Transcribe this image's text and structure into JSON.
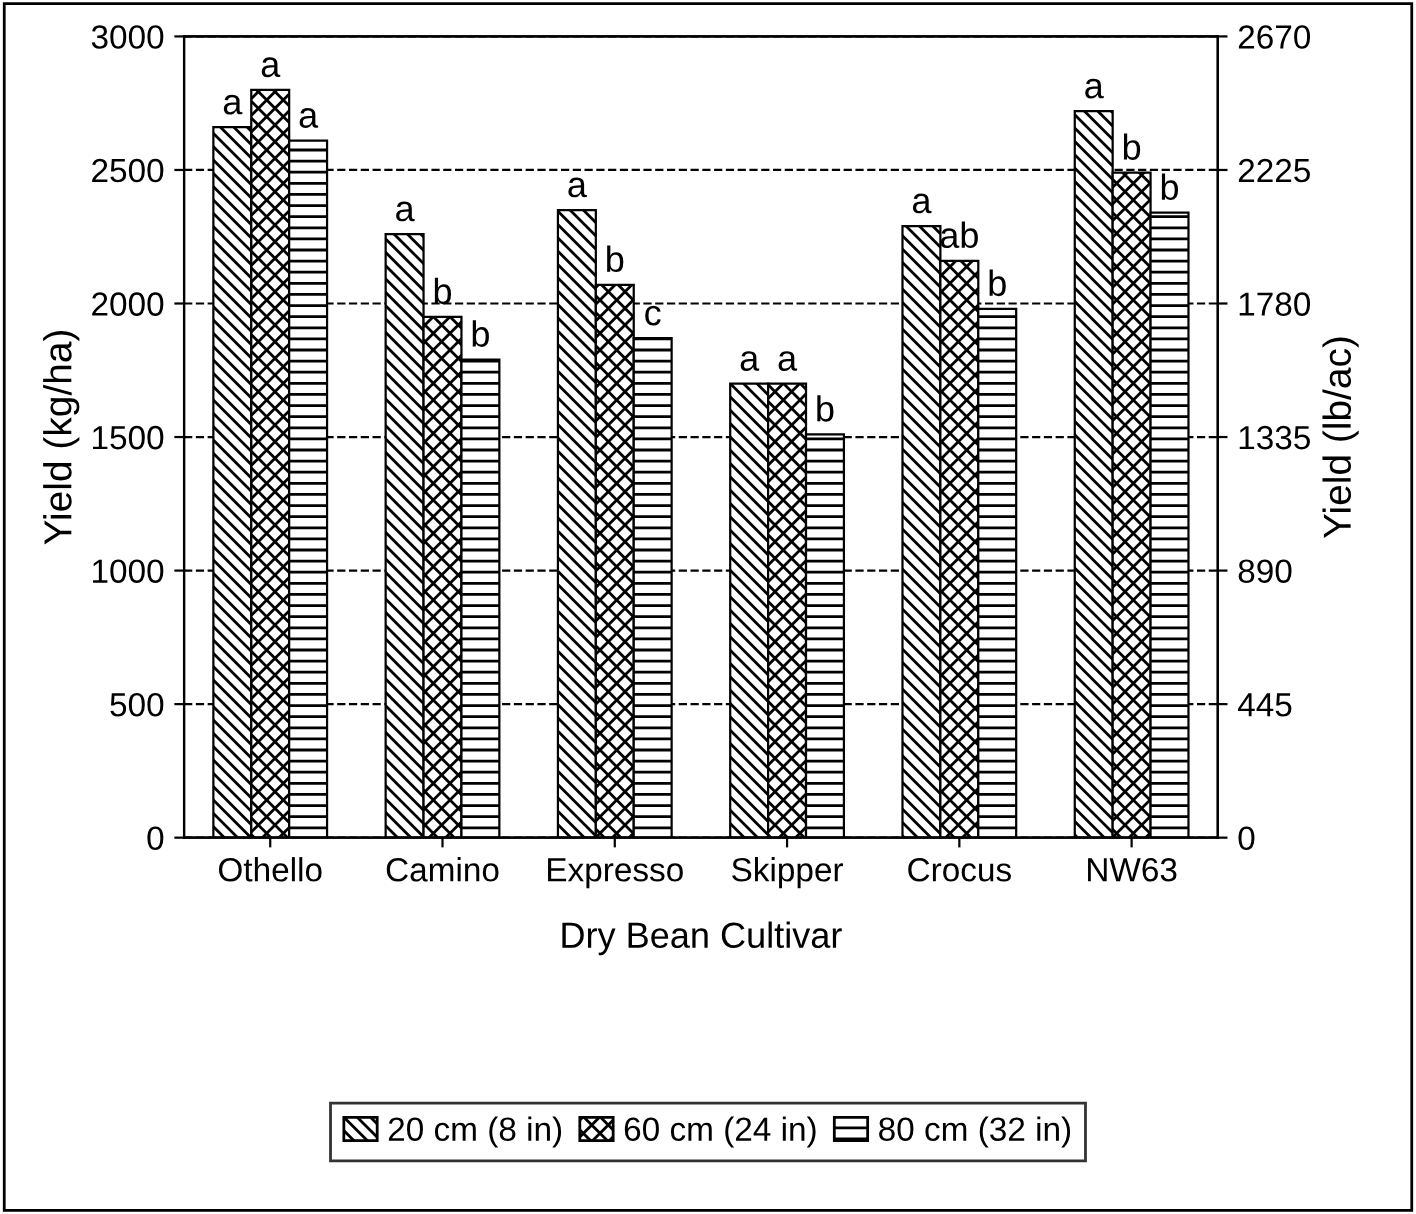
{
  "chart_data": {
    "type": "bar",
    "xlabel": "Dry Bean Cultivar",
    "ylabel": "Yield (kg/ha)",
    "y2label": "Yield (lb/ac)",
    "categories": [
      "Othello",
      "Camino",
      "Expresso",
      "Skipper",
      "Crocus",
      "NW63"
    ],
    "series": [
      {
        "name": "20 cm (8 in)",
        "color": "#000000",
        "values": [
          2660,
          2260,
          2350,
          1700,
          2290,
          2720
        ],
        "value_labels": [
          "a",
          "a",
          "a",
          "a",
          "a",
          "a"
        ]
      },
      {
        "name": "60 cm (24 in)",
        "color": "#000000",
        "values": [
          2800,
          1950,
          2070,
          1700,
          2160,
          2490
        ],
        "value_labels": [
          "a",
          "b",
          "b",
          "a",
          "ab",
          "b"
        ]
      },
      {
        "name": "80 cm (32 in)",
        "color": "#000000",
        "values": [
          2610,
          1790,
          1870,
          1510,
          1980,
          2340
        ],
        "value_labels": [
          "a",
          "b",
          "c",
          "b",
          "b",
          "b"
        ]
      }
    ],
    "ylim": [
      0,
      3000
    ],
    "yticks": [
      0,
      500,
      1000,
      1500,
      2000,
      2500,
      3000
    ],
    "y2lim": [
      0,
      2670
    ],
    "y2ticks": [
      0,
      445,
      890,
      1335,
      1780,
      2225,
      2670
    ],
    "grid": "y",
    "legend": "bottom"
  }
}
